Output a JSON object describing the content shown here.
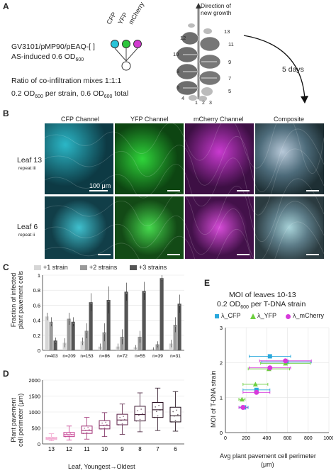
{
  "panelA": {
    "letter": "A",
    "construct_line1": "GV3101/pMP90/pEAQ-[ ]",
    "construct_line2": "AS-induced 0.6 OD",
    "construct_line2_sub": "600",
    "fluor_labels": [
      "CFP",
      "YFP",
      "mCherry"
    ],
    "ratio_line": "Ratio of co-infiltration mixes 1:1:1",
    "od_line_a": "0.2 OD",
    "od_line_sub1": "600",
    "od_line_b": " per strain, 0.6 OD",
    "od_line_sub2": "600",
    "od_line_c": " total",
    "direction_line1": "Direction of",
    "direction_line2": "new growth",
    "leaf_numbers_left": [
      "12",
      "10",
      "8",
      "6",
      "4"
    ],
    "leaf_numbers_right": [
      "13",
      "11",
      "9",
      "7",
      "5"
    ],
    "leaf_numbers_bottom": [
      "1",
      "2",
      "3"
    ],
    "days_label": "5 days",
    "colors": {
      "cfp": "#29c4d8",
      "yfp": "#2dc63c",
      "mcherry": "#d23ad0"
    }
  },
  "panelB": {
    "letter": "B",
    "columns": [
      "CFP Channel",
      "YFP Channel",
      "mCherry Channel",
      "Composite"
    ],
    "rows": [
      {
        "leaf": "Leaf 13",
        "repeat": "repeat iii"
      },
      {
        "leaf": "Leaf 6",
        "repeat": "repeat ii"
      }
    ],
    "scale_label": "100 μm"
  },
  "panelC": {
    "letter": "C",
    "legend": [
      "+1 strain",
      "+2 strains",
      "+3 strains"
    ],
    "ylabel_line1": "Fraction of infected",
    "ylabel_line2": "plant pavement cells",
    "n_labels": [
      "n=403",
      "n=209",
      "n=153",
      "n=86",
      "n=72",
      "n=55",
      "n=39",
      "n=31"
    ]
  },
  "panelD": {
    "letter": "D",
    "ylabel_line1": "Plant pavement",
    "ylabel_line2": "cell perimeter (μm)",
    "xlabel": "Leaf, Youngest→Oldest"
  },
  "panelE": {
    "letter": "E",
    "title_line1": "MOI of leaves 10-13",
    "title_line2a": "0.2 OD",
    "title_line2_sub": "600",
    "title_line2b": " per T-DNA strain",
    "legend": [
      "λ_CFP",
      "λ_YFP",
      "λ_mCherry"
    ],
    "ylabel": "MOI of T-DNA strain",
    "xlabel_line1": "Avg plant pavement cell perimeter",
    "xlabel_line2": "(μm)"
  },
  "chart_data": [
    {
      "type": "bar",
      "panel": "C",
      "categories": [
        "13",
        "12",
        "11",
        "10",
        "9",
        "8",
        "7",
        "6"
      ],
      "ylim": [
        0,
        1
      ],
      "yticks": [
        "0",
        "0.2",
        "0.4",
        "0.6",
        "0.8",
        "1"
      ],
      "series": [
        {
          "name": "+1 strain",
          "values": [
            0.45,
            0.1,
            0.12,
            0.05,
            0.05,
            0.04,
            0.02,
            0.09
          ],
          "color": "#d6d6d6"
        },
        {
          "name": "+2 strains",
          "values": [
            0.38,
            0.42,
            0.26,
            0.24,
            0.18,
            0.18,
            0.08,
            0.34
          ],
          "color": "#9a9a9a"
        },
        {
          "name": "+3 strains",
          "values": [
            0.13,
            0.38,
            0.64,
            0.67,
            0.78,
            0.79,
            0.96,
            0.62
          ],
          "color": "#555555"
        }
      ],
      "errors": [
        [
          0.05,
          0.06,
          0.05,
          0.04,
          0.04,
          0.03,
          0.02,
          0.05
        ],
        [
          0.06,
          0.08,
          0.1,
          0.12,
          0.1,
          0.08,
          0.04,
          0.1
        ],
        [
          0.04,
          0.06,
          0.12,
          0.18,
          0.12,
          0.12,
          0.04,
          0.12
        ]
      ],
      "grid": true
    },
    {
      "type": "box",
      "panel": "D",
      "categories": [
        "13",
        "12",
        "11",
        "10",
        "9",
        "8",
        "7",
        "6"
      ],
      "ylim": [
        0,
        2000
      ],
      "yticks": [
        "0",
        "500",
        "1000",
        "1500",
        "2000"
      ],
      "boxes": [
        {
          "min": 100,
          "q1": 140,
          "median": 170,
          "q3": 210,
          "max": 320,
          "color": "#f2a6cf"
        },
        {
          "min": 120,
          "q1": 230,
          "median": 290,
          "q3": 360,
          "max": 560,
          "color": "#c43b8f"
        },
        {
          "min": 150,
          "q1": 330,
          "median": 420,
          "q3": 560,
          "max": 830,
          "color": "#a13175"
        },
        {
          "min": 230,
          "q1": 470,
          "median": 580,
          "q3": 730,
          "max": 980,
          "color": "#7d2a5f"
        },
        {
          "min": 300,
          "q1": 600,
          "median": 750,
          "q3": 930,
          "max": 1250,
          "color": "#5c2348"
        },
        {
          "min": 380,
          "q1": 720,
          "median": 920,
          "q3": 1180,
          "max": 1600,
          "color": "#3e1832"
        },
        {
          "min": 420,
          "q1": 830,
          "median": 1070,
          "q3": 1300,
          "max": 1750,
          "color": "#2a1022"
        },
        {
          "min": 400,
          "q1": 690,
          "median": 880,
          "q3": 1150,
          "max": 1640,
          "color": "#1e0b18"
        }
      ],
      "grid": true
    },
    {
      "type": "scatter",
      "panel": "E",
      "xlim": [
        0,
        1000
      ],
      "ylim": [
        0,
        3
      ],
      "xticks": [
        "0",
        "200",
        "400",
        "600",
        "800",
        "1000"
      ],
      "yticks": [
        "0",
        "1",
        "2",
        "3"
      ],
      "series": [
        {
          "name": "λ_CFP",
          "marker": "square",
          "color": "#29a8dc",
          "points": [
            {
              "x": 180,
              "y": 0.72,
              "xerr": 40,
              "yerr": 0.05
            },
            {
              "x": 300,
              "y": 1.22,
              "xerr": 130,
              "yerr": 0.05
            },
            {
              "x": 430,
              "y": 2.18,
              "xerr": 200,
              "yerr": 0.05
            },
            {
              "x": 590,
              "y": 2.02,
              "xerr": 240,
              "yerr": 0.05
            }
          ]
        },
        {
          "name": "λ_YFP",
          "marker": "triangle",
          "color": "#6dcf3f",
          "points": [
            {
              "x": 160,
              "y": 0.95,
              "xerr": 30,
              "yerr": 0.05
            },
            {
              "x": 290,
              "y": 1.38,
              "xerr": 120,
              "yerr": 0.05
            },
            {
              "x": 420,
              "y": 1.82,
              "xerr": 200,
              "yerr": 0.05
            },
            {
              "x": 580,
              "y": 1.98,
              "xerr": 240,
              "yerr": 0.05
            }
          ]
        },
        {
          "name": "λ_mCherry",
          "marker": "circle",
          "color": "#d73adb",
          "points": [
            {
              "x": 170,
              "y": 0.72,
              "xerr": 40,
              "yerr": 0.05
            },
            {
              "x": 300,
              "y": 1.15,
              "xerr": 130,
              "yerr": 0.05
            },
            {
              "x": 430,
              "y": 1.85,
              "xerr": 200,
              "yerr": 0.05
            },
            {
              "x": 580,
              "y": 2.05,
              "xerr": 250,
              "yerr": 0.05
            }
          ]
        }
      ],
      "grid": true
    }
  ]
}
